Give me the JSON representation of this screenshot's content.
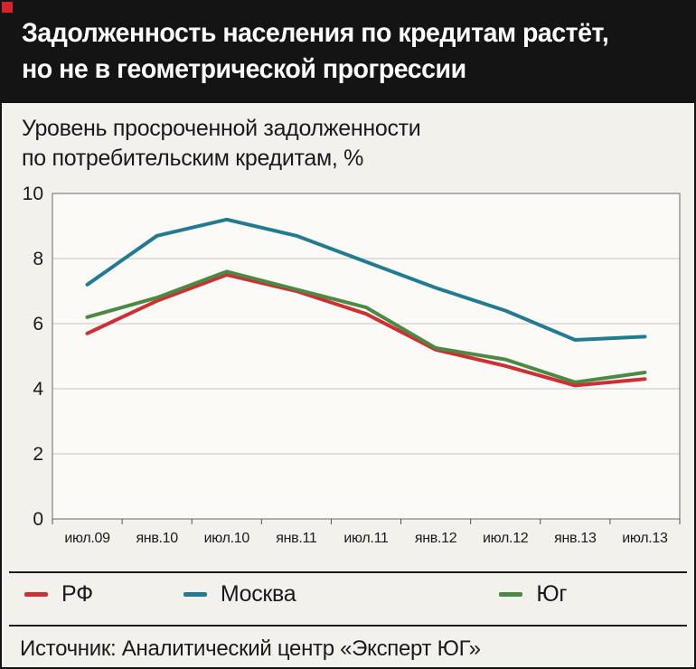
{
  "header": {
    "title_line1": "Задолженность населения по кредитам растёт,",
    "title_line2": "но не в геометрической прогрессии"
  },
  "subtitle": {
    "line1": "Уровень просроченной задолженности",
    "line2": "по потребительским кредитам, %"
  },
  "chart_data": {
    "type": "line",
    "title": "Уровень просроченной задолженности по потребительским кредитам, %",
    "categories": [
      "июл.09",
      "янв.10",
      "июл.10",
      "янв.11",
      "июл.11",
      "янв.12",
      "июл.12",
      "янв.13",
      "июл.13"
    ],
    "series": [
      {
        "name": "РФ",
        "color": "#cf2e35",
        "values": [
          5.7,
          6.7,
          7.5,
          7.0,
          6.3,
          5.2,
          4.7,
          4.1,
          4.3
        ]
      },
      {
        "name": "Москва",
        "color": "#237b92",
        "values": [
          7.2,
          8.7,
          9.2,
          8.7,
          7.9,
          7.1,
          6.4,
          5.5,
          5.6
        ]
      },
      {
        "name": "Юг",
        "color": "#4a8a42",
        "values": [
          6.2,
          6.8,
          7.6,
          7.05,
          6.5,
          5.25,
          4.9,
          4.2,
          4.5
        ]
      }
    ],
    "ylim": [
      0,
      10
    ],
    "yticks": [
      0,
      2,
      4,
      6,
      8,
      10
    ],
    "grid": "horizontal",
    "legend_position": "bottom",
    "xlabel": "",
    "ylabel": ""
  },
  "source": {
    "text": "Источник: Аналитический центр «Эксперт ЮГ»"
  },
  "colors": {
    "header_bg": "#141414",
    "accent_red": "#d6242b",
    "background": "#f2f1ec",
    "plot_bg": "#fbfaf7",
    "gridline": "#c8c7c0",
    "plot_border": "#8a8a82"
  }
}
